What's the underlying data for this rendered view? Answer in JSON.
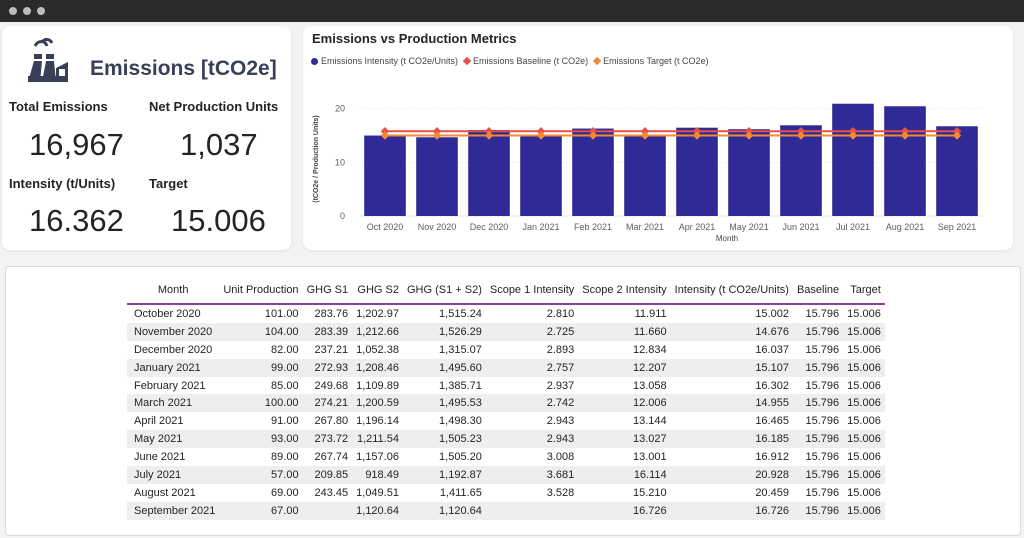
{
  "kpi": {
    "title": "Emissions [tCO2e]",
    "icon": "factory-icon",
    "total_emissions_label": "Total Emissions",
    "total_emissions_value": "16,967",
    "net_production_label": "Net Production Units",
    "net_production_value": "1,037",
    "intensity_label": "Intensity (t/Units)",
    "intensity_value": "16.362",
    "target_label": "Target",
    "target_value": "15.006"
  },
  "chart_data": {
    "type": "bar",
    "title": "Emissions vs Production Metrics",
    "xlabel": "Month",
    "ylabel": "(tCO2e / Production Units)",
    "ylim": [
      0,
      22
    ],
    "yticks": [
      0,
      10,
      20
    ],
    "grid": true,
    "legend_position": "top-left",
    "categories": [
      "Oct 2020",
      "Nov 2020",
      "Dec 2020",
      "Jan 2021",
      "Feb 2021",
      "Mar 2021",
      "Apr 2021",
      "May 2021",
      "Jun 2021",
      "Jul 2021",
      "Aug 2021",
      "Sep 2021"
    ],
    "series": [
      {
        "name": "Emissions Intensity (t CO2e/Units)",
        "type": "bar",
        "color": "#2f2a95",
        "values": [
          15.002,
          14.676,
          16.037,
          15.107,
          16.302,
          14.955,
          16.465,
          16.185,
          16.912,
          20.928,
          20.459,
          16.726
        ]
      },
      {
        "name": "Emissions Baseline (t CO2e)",
        "type": "line",
        "color": "#e8504a",
        "values": [
          15.796,
          15.796,
          15.796,
          15.796,
          15.796,
          15.796,
          15.796,
          15.796,
          15.796,
          15.796,
          15.796,
          15.796
        ]
      },
      {
        "name": "Emissions Target (t CO2e)",
        "type": "line",
        "color": "#f08a34",
        "values": [
          15.006,
          15.006,
          15.006,
          15.006,
          15.006,
          15.006,
          15.006,
          15.006,
          15.006,
          15.006,
          15.006,
          15.006
        ]
      }
    ]
  },
  "table": {
    "headers": [
      "Month",
      "Unit Production",
      "GHG S1",
      "GHG S2",
      "GHG (S1 + S2)",
      "Scope 1 Intensity",
      "Scope 2 Intensity",
      "Intensity (t CO2e/Units)",
      "Baseline",
      "Target"
    ],
    "rows": [
      [
        "October 2020",
        "101.00",
        "283.76",
        "1,202.97",
        "1,515.24",
        "2.810",
        "11.911",
        "15.002",
        "15.796",
        "15.006"
      ],
      [
        "November 2020",
        "104.00",
        "283.39",
        "1,212.66",
        "1,526.29",
        "2.725",
        "11.660",
        "14.676",
        "15.796",
        "15.006"
      ],
      [
        "December 2020",
        "82.00",
        "237.21",
        "1,052.38",
        "1,315.07",
        "2.893",
        "12.834",
        "16.037",
        "15.796",
        "15.006"
      ],
      [
        "January 2021",
        "99.00",
        "272.93",
        "1,208.46",
        "1,495.60",
        "2.757",
        "12.207",
        "15.107",
        "15.796",
        "15.006"
      ],
      [
        "February 2021",
        "85.00",
        "249.68",
        "1,109.89",
        "1,385.71",
        "2.937",
        "13.058",
        "16.302",
        "15.796",
        "15.006"
      ],
      [
        "March 2021",
        "100.00",
        "274.21",
        "1,200.59",
        "1,495.53",
        "2.742",
        "12.006",
        "14.955",
        "15.796",
        "15.006"
      ],
      [
        "April 2021",
        "91.00",
        "267.80",
        "1,196.14",
        "1,498.30",
        "2.943",
        "13.144",
        "16.465",
        "15.796",
        "15.006"
      ],
      [
        "May 2021",
        "93.00",
        "273.72",
        "1,211.54",
        "1,505.23",
        "2.943",
        "13.027",
        "16.185",
        "15.796",
        "15.006"
      ],
      [
        "June 2021",
        "89.00",
        "267.74",
        "1,157.06",
        "1,505.20",
        "3.008",
        "13.001",
        "16.912",
        "15.796",
        "15.006"
      ],
      [
        "July 2021",
        "57.00",
        "209.85",
        "918.49",
        "1,192.87",
        "3.681",
        "16.114",
        "20.928",
        "15.796",
        "15.006"
      ],
      [
        "August 2021",
        "69.00",
        "243.45",
        "1,049.51",
        "1,411.65",
        "3.528",
        "15.210",
        "20.459",
        "15.796",
        "15.006"
      ],
      [
        "September 2021",
        "67.00",
        "",
        "1,120.64",
        "1,120.64",
        "",
        "16.726",
        "16.726",
        "15.796",
        "15.006"
      ]
    ]
  }
}
